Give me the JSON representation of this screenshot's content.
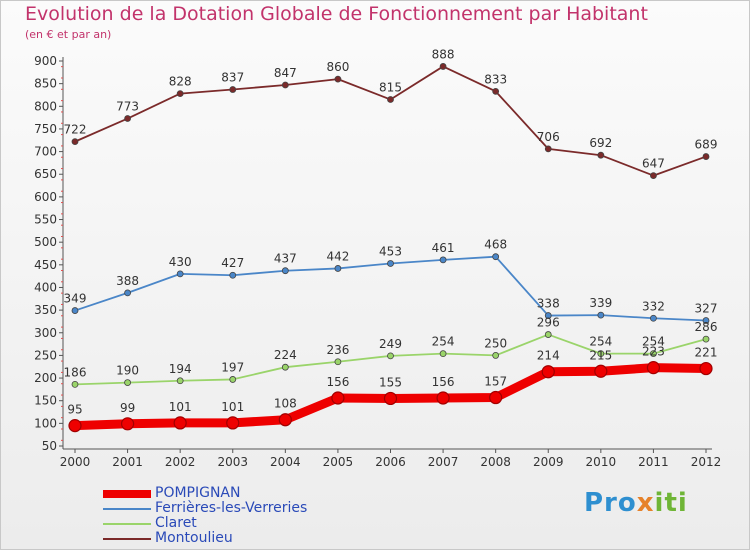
{
  "header": {
    "title": "Evolution de la Dotation Globale de Fonctionnement par Habitant",
    "subtitle": "(en € et par an)"
  },
  "logo": {
    "part1": "Pro",
    "part2": "x",
    "part3": "iti"
  },
  "chart_data": {
    "type": "line",
    "x": [
      "2000",
      "2001",
      "2002",
      "2003",
      "2004",
      "2005",
      "2006",
      "2007",
      "2008",
      "2009",
      "2010",
      "2011",
      "2012"
    ],
    "ylim": [
      50,
      900
    ],
    "yticks": [
      50,
      100,
      150,
      200,
      250,
      300,
      350,
      400,
      450,
      500,
      550,
      600,
      650,
      700,
      750,
      800,
      850,
      900
    ],
    "grid": false,
    "legend_position": "bottom-left",
    "series": [
      {
        "name": "Montoulieu",
        "color": "#7b2a2a",
        "values": [
          722,
          773,
          828,
          837,
          847,
          860,
          815,
          888,
          833,
          706,
          692,
          647,
          689
        ]
      },
      {
        "name": "Ferrières-les-Verreries",
        "color": "#4a86c8",
        "values": [
          349,
          388,
          430,
          427,
          437,
          442,
          453,
          461,
          468,
          338,
          339,
          332,
          327
        ]
      },
      {
        "name": "Claret",
        "color": "#9ad46a",
        "values": [
          186,
          190,
          194,
          197,
          224,
          236,
          249,
          254,
          250,
          296,
          254,
          254,
          286
        ]
      },
      {
        "name": "POMPIGNAN",
        "color": "#ee0000",
        "values": [
          95,
          99,
          101,
          101,
          108,
          156,
          155,
          156,
          157,
          214,
          215,
          223,
          221
        ]
      }
    ],
    "legend_order": [
      "POMPIGNAN",
      "Ferrières-les-Verreries",
      "Claret",
      "Montoulieu"
    ]
  }
}
